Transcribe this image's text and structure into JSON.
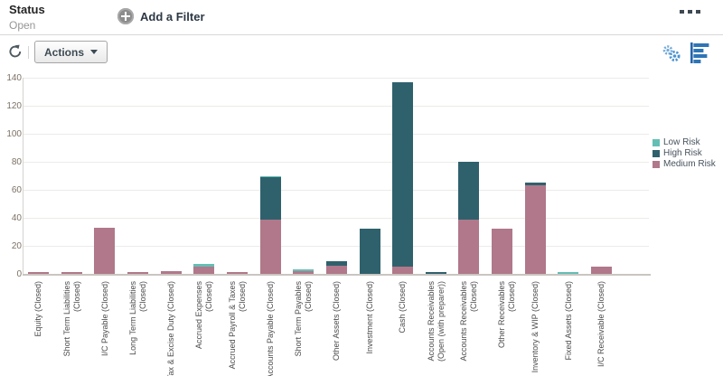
{
  "header": {
    "title": "Status",
    "subtitle": "Open",
    "add_filter": {
      "icon": "plus-circle-icon",
      "label": "Add a Filter"
    },
    "more_icon": "ellipsis-icon"
  },
  "toolbar": {
    "refresh_icon": "refresh-icon",
    "actions_button": {
      "label": "Actions",
      "caret_icon": "chevron-down-icon"
    },
    "settings_icon": "gears-icon",
    "view_icon": "horizontal-bar-chart-icon"
  },
  "chart_data": {
    "type": "bar",
    "stacked": true,
    "title": "",
    "xlabel": "",
    "ylabel": "",
    "ylim": [
      0,
      140
    ],
    "yticks": [
      0,
      20,
      40,
      60,
      80,
      100,
      120,
      140
    ],
    "grid": true,
    "legend_position": "right",
    "legend_order": [
      "Low Risk",
      "High Risk",
      "Medium Risk"
    ],
    "categories": [
      "Equity (Closed)",
      "Short Term Liabilities\n(Closed)",
      "I/C Payable (Closed)",
      "Long Term Liabilities\n(Closed)",
      "Tax & Excise Duty (Closed)",
      "Accrued Expenses\n(Closed)",
      "Accrued Payroll & Taxes\n(Closed)",
      "Accounts Payable (Closed)",
      "Short Term Payables\n(Closed)",
      "Other Assets (Closed)",
      "Investment (Closed)",
      "Cash (Closed)",
      "Accounts Receivables\n(Open (with preparer))",
      "Accounts Receivables\n(Closed)",
      "Other Receivables (Closed)",
      "Inventory & WIP (Closed)",
      "Fixed Assets (Closed)",
      "I/C Receivable (Closed)"
    ],
    "series": [
      {
        "name": "Medium Risk",
        "color": "#b0788a",
        "values": [
          1,
          1,
          33,
          1,
          2,
          5,
          1,
          39,
          2,
          6,
          0,
          5,
          0,
          39,
          32,
          63.5,
          0,
          5
        ]
      },
      {
        "name": "High Risk",
        "color": "#2f616d",
        "values": [
          0,
          0,
          0,
          0,
          0,
          0,
          0,
          30,
          0,
          3,
          32,
          132,
          1.5,
          41,
          0,
          1.5,
          0,
          0
        ]
      },
      {
        "name": "Low Risk",
        "color": "#63bfb4",
        "values": [
          0,
          0,
          0,
          0,
          0,
          2,
          0,
          1,
          1.5,
          0,
          0,
          0,
          0,
          0,
          0,
          0,
          1,
          0
        ]
      }
    ]
  }
}
